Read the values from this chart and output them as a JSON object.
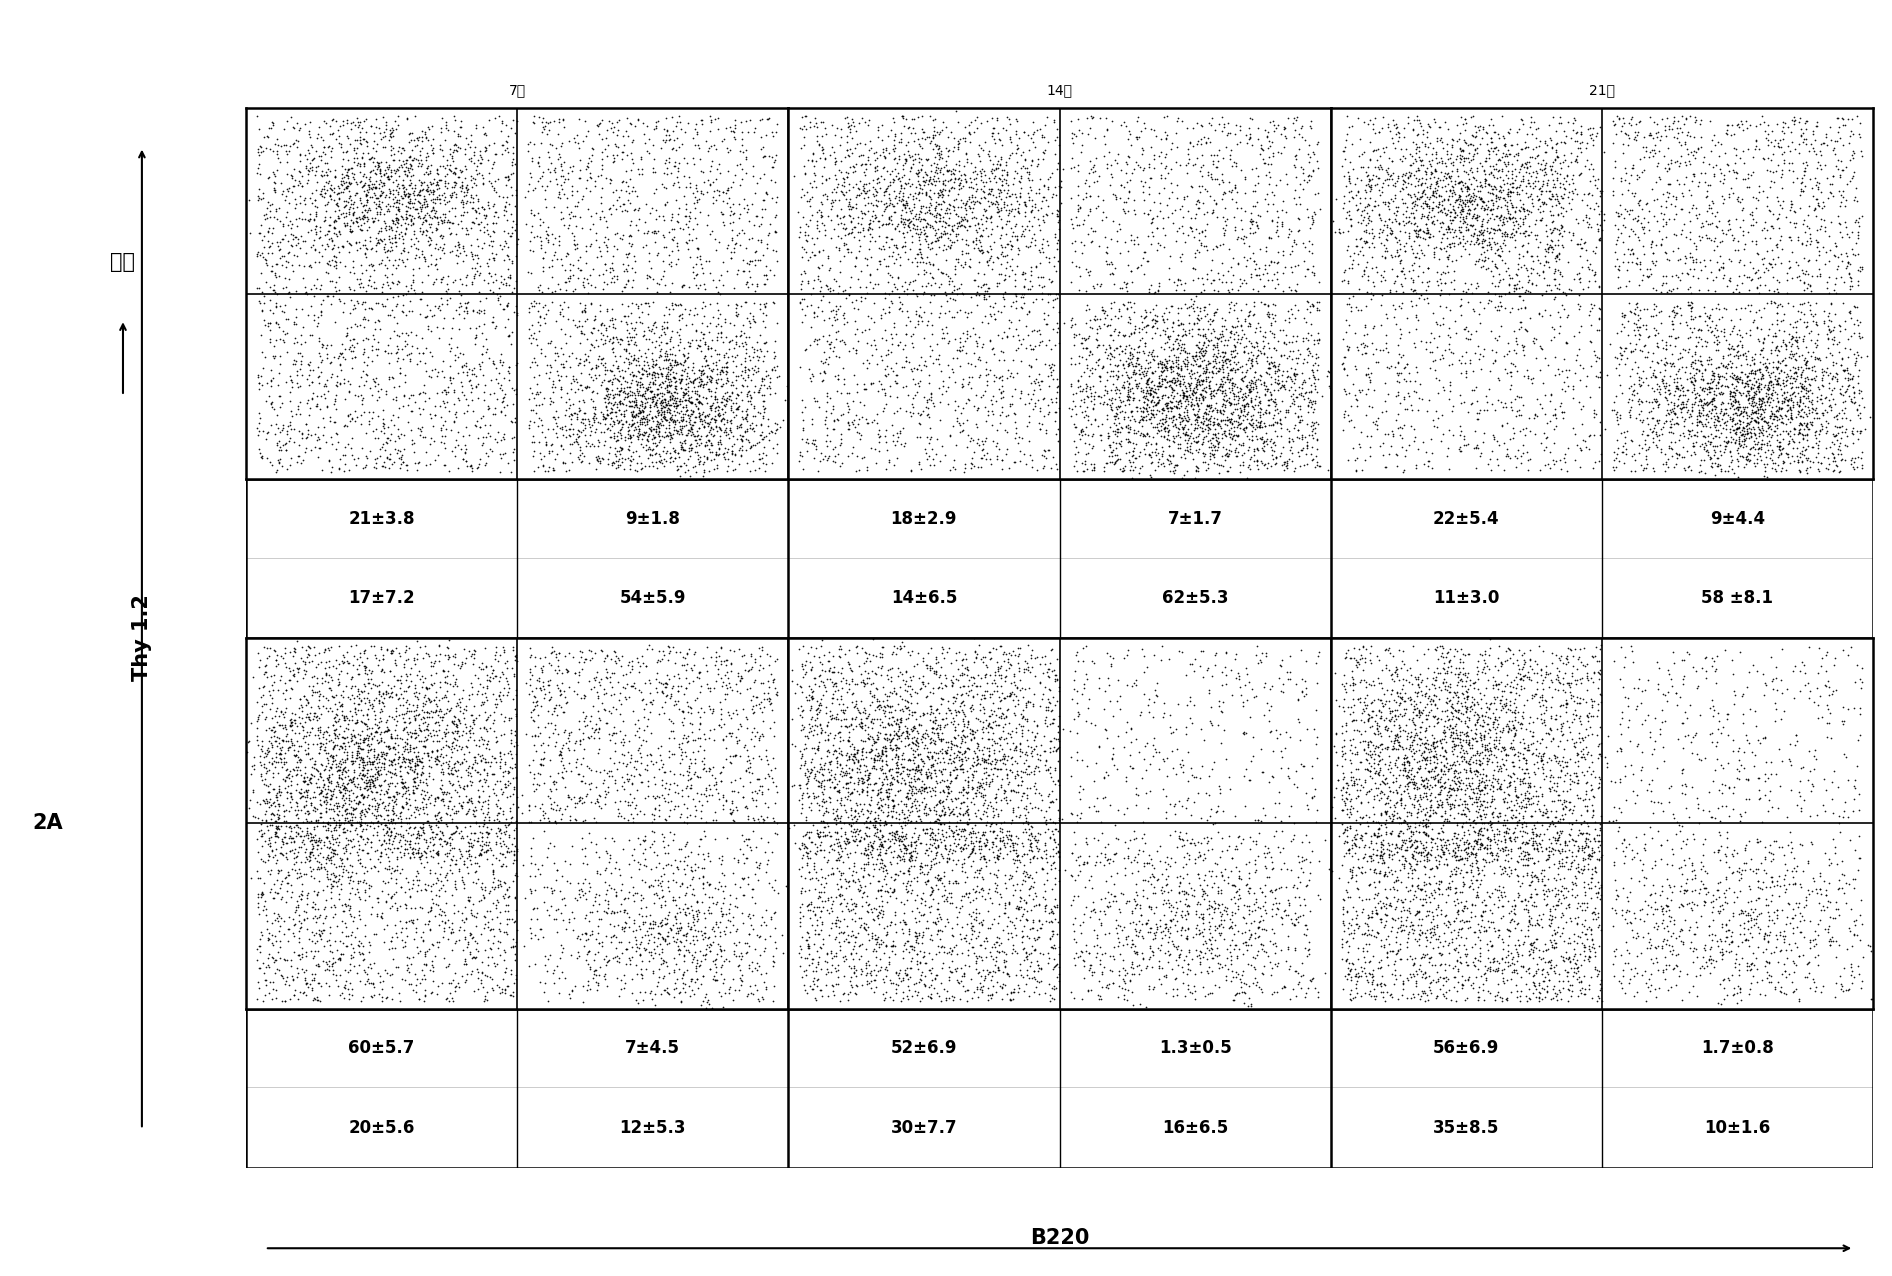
{
  "col_titles": [
    "7天",
    "14天",
    "21天"
  ],
  "row_label_top": "对照",
  "row_label_bottom": "2A",
  "y_axis_label": "Thy 1.2",
  "x_axis_label": "B220",
  "quadrant_stats": {
    "row0_col0": {
      "UL": "21±3.8",
      "UR": "9±1.8",
      "LL": "17±7.2",
      "LR": "54±5.9"
    },
    "row0_col1": {
      "UL": "18±2.9",
      "UR": "7±1.7",
      "LL": "14±6.5",
      "LR": "62±5.3"
    },
    "row0_col2": {
      "UL": "22±5.4",
      "UR": "9±4.4",
      "LL": "11±3.0",
      "LR": "58 ±8.1"
    },
    "row1_col0": {
      "UL": "60±5.7",
      "UR": "7±4.5",
      "LL": "20±5.6",
      "LR": "12±5.3"
    },
    "row1_col1": {
      "UL": "52±6.9",
      "UR": "1.3±0.5",
      "LL": "30±7.7",
      "LR": "16±6.5"
    },
    "row1_col2": {
      "UL": "56±6.9",
      "UR": "1.7±0.8",
      "LL": "35±8.5",
      "LR": "10±1.6"
    }
  },
  "background_color": "#ffffff",
  "dot_color": "#000000",
  "stat_fontsize": 12,
  "label_fontsize": 15,
  "title_fontsize": 18
}
